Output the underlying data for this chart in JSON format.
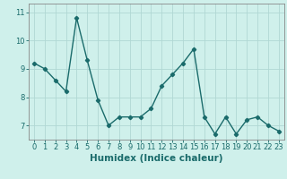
{
  "title": "",
  "xlabel": "Humidex (Indice chaleur)",
  "ylabel": "",
  "x": [
    0,
    1,
    2,
    3,
    4,
    5,
    6,
    7,
    8,
    9,
    10,
    11,
    12,
    13,
    14,
    15,
    16,
    17,
    18,
    19,
    20,
    21,
    22,
    23
  ],
  "y": [
    9.2,
    9.0,
    8.6,
    8.2,
    10.8,
    9.3,
    7.9,
    7.0,
    7.3,
    7.3,
    7.3,
    7.6,
    8.4,
    8.8,
    9.2,
    9.7,
    7.3,
    6.7,
    7.3,
    6.7,
    7.2,
    7.3,
    7.0,
    6.8
  ],
  "line_color": "#1a6b6b",
  "marker": "D",
  "marker_size": 2.2,
  "linewidth": 1.0,
  "bg_color": "#cff0eb",
  "grid_color": "#b0d8d4",
  "axes_color": "#888888",
  "xlim": [
    -0.5,
    23.5
  ],
  "ylim": [
    6.5,
    11.3
  ],
  "yticks": [
    7,
    8,
    9,
    10,
    11
  ],
  "xticks": [
    0,
    1,
    2,
    3,
    4,
    5,
    6,
    7,
    8,
    9,
    10,
    11,
    12,
    13,
    14,
    15,
    16,
    17,
    18,
    19,
    20,
    21,
    22,
    23
  ],
  "tick_fontsize": 6.0,
  "label_fontsize": 7.5
}
